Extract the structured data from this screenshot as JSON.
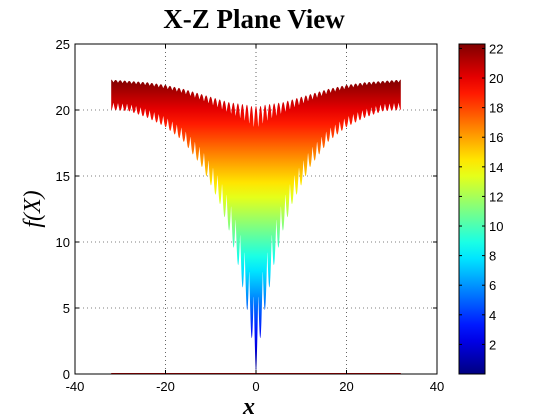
{
  "chart_data": {
    "type": "area",
    "title": "X-Z Plane View",
    "xlabel": "x",
    "ylabel": "f(X)",
    "xlim": [
      -40,
      40
    ],
    "ylim": [
      0,
      25
    ],
    "xticks": [
      -40,
      -20,
      0,
      20,
      40
    ],
    "yticks": [
      0,
      5,
      10,
      15,
      20,
      25
    ],
    "xtick_labels": [
      "-40",
      "-20",
      "0",
      "20",
      "40"
    ],
    "ytick_labels": [
      "0",
      "5",
      "10",
      "15",
      "20",
      "25"
    ],
    "grid": true,
    "colormap": "jet",
    "colorbar": {
      "position": "right",
      "range": [
        0,
        22.3
      ],
      "ticks": [
        2,
        4,
        6,
        8,
        10,
        12,
        14,
        16,
        18,
        20,
        22
      ],
      "tick_labels": [
        "2",
        "4",
        "6",
        "8",
        "10",
        "12",
        "14",
        "16",
        "18",
        "20",
        "22"
      ]
    },
    "series": [
      {
        "x_range": [
          -32,
          32
        ],
        "upper_envelope": {
          "x": [
            -32,
            -28,
            -24,
            -20,
            -16,
            -12,
            -8,
            -6,
            -4,
            -2,
            -1,
            0,
            1,
            2,
            4,
            6,
            8,
            12,
            16,
            20,
            24,
            28,
            32
          ],
          "y": [
            22.3,
            22.2,
            22.1,
            21.9,
            21.6,
            21.2,
            20.8,
            20.6,
            20.5,
            20.4,
            20.3,
            20.3,
            20.3,
            20.4,
            20.5,
            20.6,
            20.8,
            21.2,
            21.6,
            21.9,
            22.1,
            22.2,
            22.3
          ]
        },
        "lower_envelope": {
          "x": [
            -32,
            -28,
            -24,
            -20,
            -16,
            -12,
            -8,
            -6,
            -4,
            -2,
            -1,
            0,
            1,
            2,
            4,
            6,
            8,
            12,
            16,
            20,
            24,
            28,
            32
          ],
          "y": [
            20.0,
            19.9,
            19.4,
            18.7,
            17.6,
            15.7,
            12.9,
            10.9,
            8.3,
            4.9,
            2.8,
            0.0,
            2.8,
            4.9,
            8.3,
            10.9,
            12.9,
            15.7,
            17.6,
            18.7,
            19.4,
            19.9,
            20.0
          ]
        },
        "oscillation_period": 1.0,
        "baseline": {
          "x": [
            -32,
            32
          ],
          "y": [
            0,
            0
          ],
          "color": "#d00000"
        }
      }
    ]
  }
}
